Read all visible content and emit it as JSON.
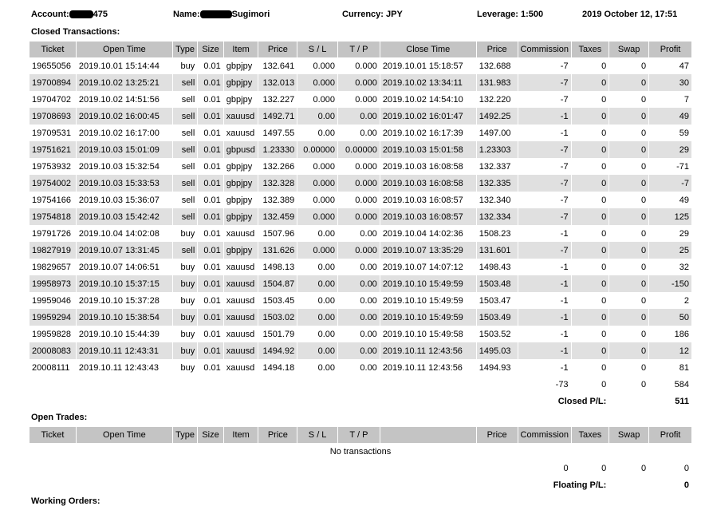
{
  "header": {
    "account_label": "Account:",
    "account_suffix": "475",
    "name_label": "Name:",
    "name_suffix": "Sugimori",
    "currency": "Currency: JPY",
    "leverage": "Leverage: 1:500",
    "datetime": "2019 October 12, 17:51"
  },
  "closed": {
    "title": "Closed Transactions:",
    "columns": [
      "Ticket",
      "Open Time",
      "Type",
      "Size",
      "Item",
      "Price",
      "S / L",
      "T / P",
      "Close Time",
      "Price",
      "Commission",
      "Taxes",
      "Swap",
      "Profit"
    ],
    "rows": [
      [
        "19655056",
        "2019.10.01 15:14:44",
        "buy",
        "0.01",
        "gbpjpy",
        "132.641",
        "0.000",
        "0.000",
        "2019.10.01 15:18:57",
        "132.688",
        "-7",
        "0",
        "0",
        "47"
      ],
      [
        "19700894",
        "2019.10.02 13:25:21",
        "sell",
        "0.01",
        "gbpjpy",
        "132.013",
        "0.000",
        "0.000",
        "2019.10.02 13:34:11",
        "131.983",
        "-7",
        "0",
        "0",
        "30"
      ],
      [
        "19704702",
        "2019.10.02 14:51:56",
        "sell",
        "0.01",
        "gbpjpy",
        "132.227",
        "0.000",
        "0.000",
        "2019.10.02 14:54:10",
        "132.220",
        "-7",
        "0",
        "0",
        "7"
      ],
      [
        "19708693",
        "2019.10.02 16:00:45",
        "sell",
        "0.01",
        "xauusd",
        "1492.71",
        "0.00",
        "0.00",
        "2019.10.02 16:01:47",
        "1492.25",
        "-1",
        "0",
        "0",
        "49"
      ],
      [
        "19709531",
        "2019.10.02 16:17:00",
        "sell",
        "0.01",
        "xauusd",
        "1497.55",
        "0.00",
        "0.00",
        "2019.10.02 16:17:39",
        "1497.00",
        "-1",
        "0",
        "0",
        "59"
      ],
      [
        "19751621",
        "2019.10.03 15:01:09",
        "sell",
        "0.01",
        "gbpusd",
        "1.23330",
        "0.00000",
        "0.00000",
        "2019.10.03 15:01:58",
        "1.23303",
        "-7",
        "0",
        "0",
        "29"
      ],
      [
        "19753932",
        "2019.10.03 15:32:54",
        "sell",
        "0.01",
        "gbpjpy",
        "132.266",
        "0.000",
        "0.000",
        "2019.10.03 16:08:58",
        "132.337",
        "-7",
        "0",
        "0",
        "-71"
      ],
      [
        "19754002",
        "2019.10.03 15:33:53",
        "sell",
        "0.01",
        "gbpjpy",
        "132.328",
        "0.000",
        "0.000",
        "2019.10.03 16:08:58",
        "132.335",
        "-7",
        "0",
        "0",
        "-7"
      ],
      [
        "19754166",
        "2019.10.03 15:36:07",
        "sell",
        "0.01",
        "gbpjpy",
        "132.389",
        "0.000",
        "0.000",
        "2019.10.03 16:08:57",
        "132.340",
        "-7",
        "0",
        "0",
        "49"
      ],
      [
        "19754818",
        "2019.10.03 15:42:42",
        "sell",
        "0.01",
        "gbpjpy",
        "132.459",
        "0.000",
        "0.000",
        "2019.10.03 16:08:57",
        "132.334",
        "-7",
        "0",
        "0",
        "125"
      ],
      [
        "19791726",
        "2019.10.04 14:02:08",
        "buy",
        "0.01",
        "xauusd",
        "1507.96",
        "0.00",
        "0.00",
        "2019.10.04 14:02:36",
        "1508.23",
        "-1",
        "0",
        "0",
        "29"
      ],
      [
        "19827919",
        "2019.10.07 13:31:45",
        "sell",
        "0.01",
        "gbpjpy",
        "131.626",
        "0.000",
        "0.000",
        "2019.10.07 13:35:29",
        "131.601",
        "-7",
        "0",
        "0",
        "25"
      ],
      [
        "19829657",
        "2019.10.07 14:06:51",
        "buy",
        "0.01",
        "xauusd",
        "1498.13",
        "0.00",
        "0.00",
        "2019.10.07 14:07:12",
        "1498.43",
        "-1",
        "0",
        "0",
        "32"
      ],
      [
        "19958973",
        "2019.10.10 15:37:15",
        "buy",
        "0.01",
        "xauusd",
        "1504.87",
        "0.00",
        "0.00",
        "2019.10.10 15:49:59",
        "1503.48",
        "-1",
        "0",
        "0",
        "-150"
      ],
      [
        "19959046",
        "2019.10.10 15:37:28",
        "buy",
        "0.01",
        "xauusd",
        "1503.45",
        "0.00",
        "0.00",
        "2019.10.10 15:49:59",
        "1503.47",
        "-1",
        "0",
        "0",
        "2"
      ],
      [
        "19959294",
        "2019.10.10 15:38:54",
        "buy",
        "0.01",
        "xauusd",
        "1503.02",
        "0.00",
        "0.00",
        "2019.10.10 15:49:59",
        "1503.49",
        "-1",
        "0",
        "0",
        "50"
      ],
      [
        "19959828",
        "2019.10.10 15:44:39",
        "buy",
        "0.01",
        "xauusd",
        "1501.79",
        "0.00",
        "0.00",
        "2019.10.10 15:49:58",
        "1503.52",
        "-1",
        "0",
        "0",
        "186"
      ],
      [
        "20008083",
        "2019.10.11 12:43:31",
        "buy",
        "0.01",
        "xauusd",
        "1494.92",
        "0.00",
        "0.00",
        "2019.10.11 12:43:56",
        "1495.03",
        "-1",
        "0",
        "0",
        "12"
      ],
      [
        "20008111",
        "2019.10.11 12:43:43",
        "buy",
        "0.01",
        "xauusd",
        "1494.18",
        "0.00",
        "0.00",
        "2019.10.11 12:43:56",
        "1494.93",
        "-1",
        "0",
        "0",
        "81"
      ]
    ],
    "totals": [
      "-73",
      "0",
      "0",
      "584"
    ],
    "pl_label": "Closed P/L:",
    "pl_value": "511"
  },
  "open": {
    "title": "Open Trades:",
    "columns": [
      "Ticket",
      "Open Time",
      "Type",
      "Size",
      "Item",
      "Price",
      "S / L",
      "T / P",
      "",
      "Price",
      "Commission",
      "Taxes",
      "Swap",
      "Profit"
    ],
    "empty": "No transactions",
    "totals": [
      "0",
      "0",
      "0",
      "0"
    ],
    "pl_label": "Floating P/L:",
    "pl_value": "0"
  },
  "working": {
    "title": "Working Orders:"
  }
}
